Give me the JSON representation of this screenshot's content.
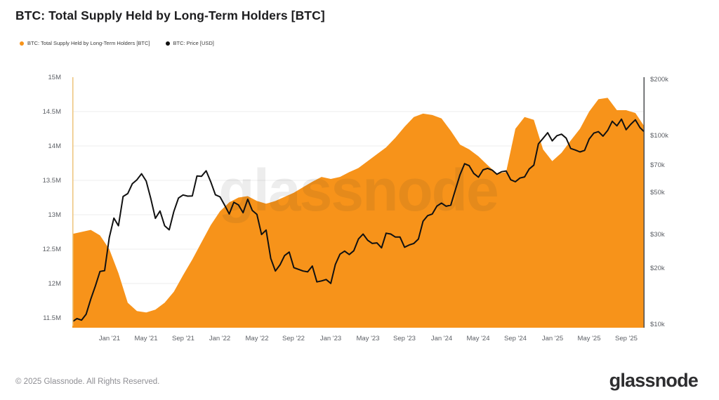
{
  "title": "BTC: Total Supply Held by Long-Term Holders [BTC]",
  "legend": {
    "supply": {
      "label": "BTC: Total Supply Held by Long-Term Holders [BTC]",
      "color": "#f7931a"
    },
    "price": {
      "label": "BTC: Price [USD]",
      "color": "#111111"
    }
  },
  "watermark": "glassnode",
  "footer": {
    "copyright": "© 2025 Glassnode. All Rights Reserved.",
    "brand": "glassnode"
  },
  "colors": {
    "supply_area": "#f7931a",
    "price_line": "#111111",
    "left_axis_line": "#eec47c",
    "bottom_axis_line": "#f7931a",
    "right_axis_line": "#4d4f52",
    "gridline": "#ededed",
    "tick_text": "#5d6066"
  },
  "chart_data": {
    "type": "area+line",
    "title": "BTC: Total Supply Held by Long-Term Holders [BTC]",
    "x_range": {
      "start": "2020-09",
      "end": "2025-11"
    },
    "left_axis": {
      "scale": "linear",
      "unit": "BTC",
      "tick_labels": [
        "15M",
        "14.5M",
        "14M",
        "13.5M",
        "13M",
        "12.5M",
        "12M",
        "11.5M"
      ],
      "tick_values": [
        15,
        14.5,
        14,
        13.5,
        13,
        12.5,
        12,
        11.5
      ],
      "top_value": 15,
      "bottom_value": 11.357
    },
    "right_axis": {
      "scale": "log",
      "unit": "USD",
      "tick_labels": [
        "$200k",
        "$100k",
        "$70k",
        "$50k",
        "$30k",
        "$20k",
        "$10k"
      ],
      "tick_values_k": [
        200,
        100,
        70,
        50,
        30,
        20,
        10
      ]
    },
    "x_ticks": {
      "labels": [
        "Jan '21",
        "May '21",
        "Sep '21",
        "Jan '22",
        "May '22",
        "Sep '22",
        "Jan '23",
        "May '23",
        "Sep '23",
        "Jan '24",
        "May '24",
        "Sep '24",
        "Jan '25",
        "May '25",
        "Sep '25"
      ],
      "month_offsets": [
        4,
        8,
        12,
        16,
        20,
        24,
        28,
        32,
        36,
        40,
        44,
        48,
        52,
        56,
        60
      ],
      "total_months": 62
    },
    "series": [
      {
        "name": "BTC: Total Supply Held by Long-Term Holders [BTC]",
        "axis": "left",
        "style": "area",
        "cadence": "monthly",
        "first_point": "2020-09",
        "unit": "million BTC",
        "values": [
          12.72,
          12.75,
          12.78,
          12.7,
          12.5,
          12.15,
          11.72,
          11.6,
          11.58,
          11.62,
          11.72,
          11.88,
          12.12,
          12.35,
          12.6,
          12.85,
          13.05,
          13.18,
          13.25,
          13.27,
          13.2,
          13.16,
          13.2,
          13.26,
          13.32,
          13.4,
          13.48,
          13.55,
          13.52,
          13.55,
          13.62,
          13.68,
          13.78,
          13.88,
          13.98,
          14.12,
          14.28,
          14.42,
          14.47,
          14.45,
          14.4,
          14.22,
          14.02,
          13.95,
          13.85,
          13.72,
          13.6,
          13.62,
          14.25,
          14.42,
          14.38,
          13.95,
          13.78,
          13.9,
          14.08,
          14.25,
          14.5,
          14.68,
          14.7,
          14.52,
          14.52,
          14.48,
          14.28
        ]
      },
      {
        "name": "BTC: Price [USD]",
        "axis": "right",
        "style": "line",
        "cadence": "semi-monthly",
        "first_point": "2020-09-01",
        "unit": "thousand USD",
        "values": [
          10.4,
          10.8,
          10.6,
          11.4,
          13.7,
          16.1,
          19.2,
          19.4,
          29.0,
          36.8,
          33.5,
          47.9,
          49.6,
          55.9,
          58.7,
          63.2,
          57.8,
          46.8,
          36.7,
          40.1,
          33.5,
          31.9,
          39.9,
          47.0,
          48.8,
          48.1,
          48.2,
          61.5,
          61.3,
          65.5,
          57.2,
          48.9,
          47.7,
          43.1,
          38.7,
          44.6,
          43.2,
          39.3,
          46.3,
          40.4,
          38.5,
          30.1,
          31.8,
          22.5,
          19.3,
          20.8,
          23.3,
          24.3,
          20.1,
          19.7,
          19.3,
          19.1,
          20.5,
          16.9,
          17.1,
          17.4,
          16.6,
          20.9,
          23.7,
          24.6,
          23.6,
          24.7,
          28.5,
          30.3,
          28.1,
          27.0,
          27.2,
          25.6,
          30.6,
          30.3,
          29.2,
          29.2,
          25.8,
          26.5,
          27.0,
          28.5,
          35.4,
          37.9,
          38.7,
          42.6,
          44.2,
          42.5,
          43.1,
          51.9,
          62.4,
          71.4,
          69.7,
          63.4,
          60.6,
          66.3,
          67.5,
          66.0,
          62.8,
          64.8,
          65.4,
          58.7,
          57.3,
          60.0,
          60.8,
          67.0,
          70.2,
          91.0,
          97.3,
          104.3,
          94.4,
          100.5,
          102.4,
          97.6,
          86.0,
          84.4,
          82.5,
          84.0,
          96.5,
          103.7,
          105.6,
          100.0,
          107.2,
          119.9,
          113.4,
          123.0,
          108.2,
          115.5,
          122.0,
          111.0,
          105.0
        ]
      }
    ]
  }
}
